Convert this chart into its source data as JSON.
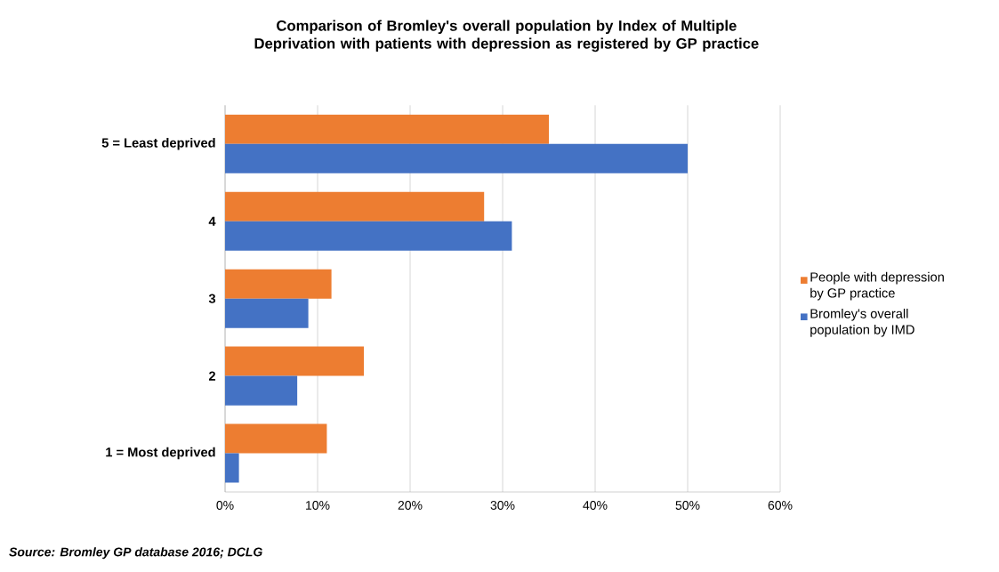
{
  "chart_data": {
    "type": "bar",
    "orientation": "horizontal",
    "title": "Comparison of Bromley's overall population by Index of Multiple Deprivation with patients with depression as registered by GP practice",
    "categories": [
      "5 = Least deprived",
      "4",
      "3",
      "2",
      "1 = Most deprived"
    ],
    "series": [
      {
        "name": "People with depression by GP practice",
        "color": "#ed7d31",
        "values": [
          35,
          28,
          11.5,
          15,
          11
        ]
      },
      {
        "name": "Bromley's overall population by IMD",
        "color": "#4472c4",
        "values": [
          50,
          31,
          9,
          7.8,
          1.5
        ]
      }
    ],
    "xlim": [
      0,
      60
    ],
    "xticks": [
      {
        "value": 0,
        "label": "0%"
      },
      {
        "value": 10,
        "label": "10%"
      },
      {
        "value": 20,
        "label": "20%"
      },
      {
        "value": 30,
        "label": "30%"
      },
      {
        "value": 40,
        "label": "40%"
      },
      {
        "value": 50,
        "label": "50%"
      },
      {
        "value": 60,
        "label": "60%"
      }
    ],
    "grid": "x",
    "legend": "right",
    "annotations": [
      "Source:  Bromley GP database 2016; DCLG"
    ]
  }
}
